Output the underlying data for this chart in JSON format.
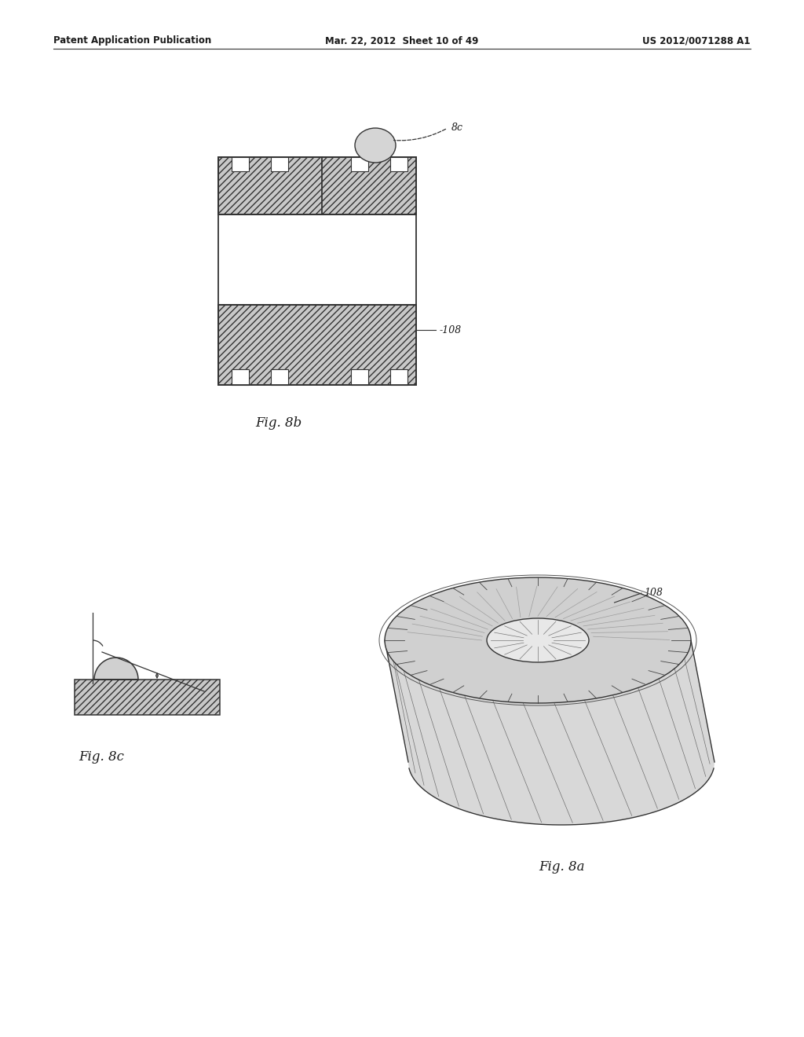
{
  "background_color": "#ffffff",
  "header_left": "Patent Application Publication",
  "header_mid": "Mar. 22, 2012  Sheet 10 of 49",
  "header_right": "US 2012/0071288 A1",
  "fig8b_label": "Fig. 8b",
  "fig8c_label": "Fig. 8c",
  "fig8a_label": "Fig. 8a",
  "label_8c": "8c",
  "label_108_fig8b": "-108",
  "label_108_fig8a": "108",
  "text_color": "#1a1a1a",
  "line_color": "#333333",
  "hatch_color": "#666666"
}
